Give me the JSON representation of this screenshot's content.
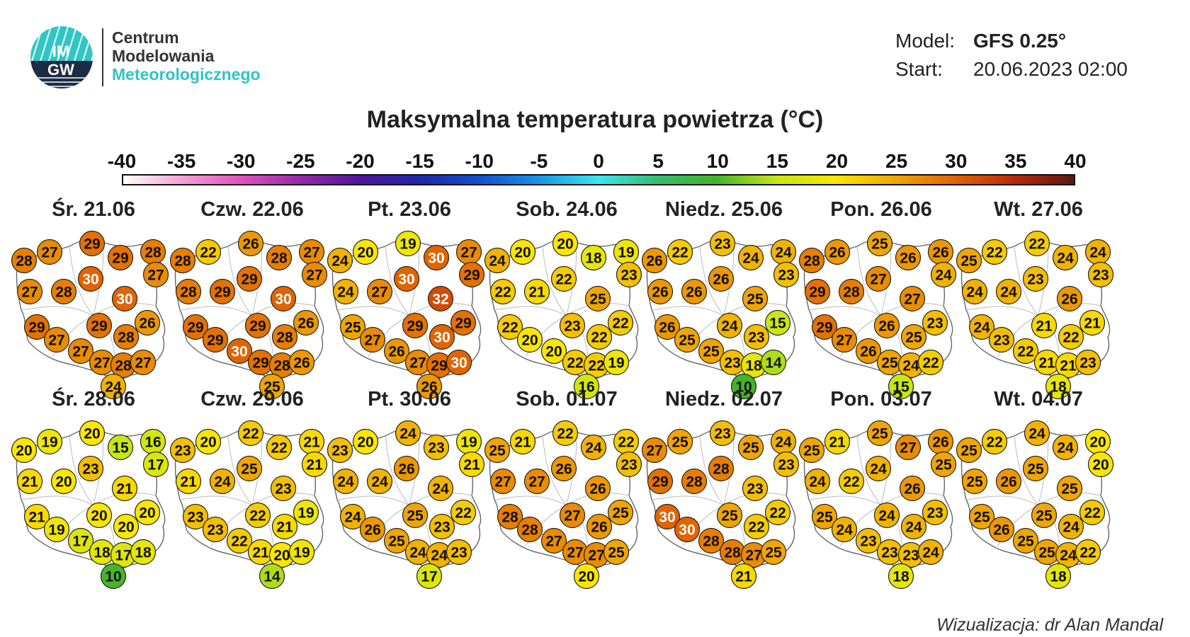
{
  "header": {
    "org_line1": "Centrum",
    "org_line2": "Modelowania",
    "org_line3": "Meteorologicznego",
    "logo_text_top": "IM",
    "logo_text_bottom": "GW",
    "model_label": "Model:",
    "model_value": "GFS 0.25°",
    "start_label": "Start:",
    "start_value": "20.06.2023 02:00"
  },
  "title": "Maksymalna temperatura powietrza (°C)",
  "scale": {
    "ticks": [
      "-40",
      "-35",
      "-30",
      "-25",
      "-20",
      "-15",
      "-10",
      "-5",
      "0",
      "5",
      "10",
      "15",
      "20",
      "25",
      "30",
      "35",
      "40"
    ],
    "min": -40,
    "max": 40
  },
  "days": [
    {
      "label": "Śr. 21.06",
      "values": [
        28,
        27,
        29,
        29,
        28,
        30,
        27,
        27,
        28,
        30,
        29,
        29,
        26,
        28,
        27,
        27,
        27,
        28,
        27,
        24
      ]
    },
    {
      "label": "Czw. 22.06",
      "values": [
        28,
        22,
        26,
        28,
        27,
        29,
        27,
        28,
        29,
        30,
        29,
        29,
        26,
        28,
        29,
        30,
        29,
        28,
        26,
        25
      ]
    },
    {
      "label": "Pt. 23.06",
      "values": [
        24,
        20,
        19,
        30,
        27,
        30,
        29,
        24,
        27,
        32,
        25,
        29,
        29,
        30,
        27,
        26,
        27,
        29,
        30,
        26
      ]
    },
    {
      "label": "Sob. 24.06",
      "values": [
        24,
        20,
        20,
        18,
        19,
        22,
        23,
        22,
        21,
        25,
        22,
        23,
        22,
        22,
        20,
        20,
        22,
        22,
        19,
        16
      ]
    },
    {
      "label": "Niedz. 25.06",
      "values": [
        26,
        22,
        23,
        24,
        24,
        26,
        23,
        26,
        26,
        25,
        26,
        24,
        15,
        23,
        25,
        25,
        23,
        18,
        14,
        10
      ]
    },
    {
      "label": "Pon. 26.06",
      "values": [
        28,
        26,
        25,
        26,
        26,
        27,
        24,
        29,
        28,
        27,
        29,
        26,
        23,
        25,
        27,
        26,
        25,
        24,
        22,
        15
      ]
    },
    {
      "label": "Wt. 27.06",
      "values": [
        25,
        22,
        22,
        24,
        24,
        23,
        23,
        24,
        24,
        26,
        24,
        21,
        21,
        22,
        23,
        22,
        21,
        21,
        23,
        18
      ]
    },
    {
      "label": "Śr. 28.06",
      "values": [
        20,
        19,
        20,
        15,
        16,
        23,
        17,
        21,
        20,
        21,
        21,
        20,
        20,
        20,
        19,
        17,
        18,
        17,
        18,
        10
      ]
    },
    {
      "label": "Czw. 29.06",
      "values": [
        23,
        20,
        22,
        22,
        21,
        25,
        21,
        21,
        24,
        23,
        23,
        22,
        19,
        21,
        23,
        22,
        21,
        20,
        19,
        14
      ]
    },
    {
      "label": "Pt. 30.06",
      "values": [
        23,
        20,
        24,
        23,
        19,
        26,
        21,
        24,
        24,
        24,
        24,
        25,
        22,
        23,
        26,
        25,
        24,
        24,
        23,
        17
      ]
    },
    {
      "label": "Sob. 01.07",
      "values": [
        25,
        21,
        22,
        24,
        22,
        26,
        23,
        27,
        27,
        26,
        28,
        27,
        25,
        26,
        28,
        27,
        27,
        27,
        25,
        20
      ]
    },
    {
      "label": "Niedz. 02.07",
      "values": [
        27,
        25,
        23,
        25,
        24,
        28,
        23,
        29,
        28,
        23,
        30,
        25,
        22,
        22,
        30,
        28,
        28,
        27,
        25,
        21
      ]
    },
    {
      "label": "Pon. 03.07",
      "values": [
        25,
        21,
        25,
        27,
        26,
        24,
        25,
        24,
        22,
        26,
        25,
        24,
        23,
        24,
        24,
        23,
        23,
        23,
        24,
        18
      ]
    },
    {
      "label": "Wt. 04.07",
      "values": [
        25,
        22,
        24,
        24,
        20,
        25,
        20,
        25,
        26,
        25,
        25,
        25,
        22,
        24,
        26,
        25,
        25,
        24,
        22,
        18
      ]
    }
  ],
  "credit": "Wizualizacja: dr Alan Mandal"
}
